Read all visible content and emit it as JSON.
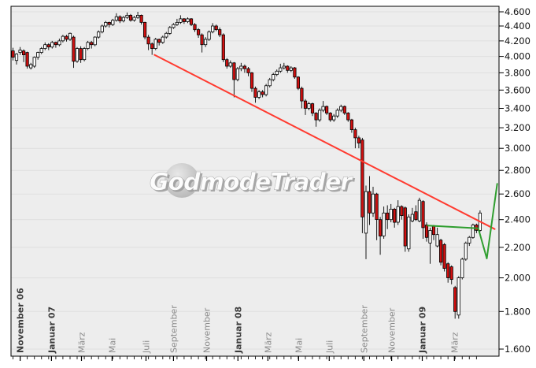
{
  "watermark": "GodmodeTrader",
  "chart_data": {
    "type": "candlestick",
    "timeframe": "weekly",
    "title": "",
    "legend": "none",
    "grid": "horizontal",
    "y_axis": {
      "side": "right",
      "scale": "log",
      "range": [
        1600,
        4600
      ],
      "ticks": [
        {
          "value": 4600,
          "label": "4.600"
        },
        {
          "value": 4400,
          "label": "4.400"
        },
        {
          "value": 4200,
          "label": "4.200"
        },
        {
          "value": 4000,
          "label": "4.000"
        },
        {
          "value": 3800,
          "label": "3.800"
        },
        {
          "value": 3600,
          "label": "3.600"
        },
        {
          "value": 3400,
          "label": "3.400"
        },
        {
          "value": 3200,
          "label": "3.200"
        },
        {
          "value": 3000,
          "label": "3.000"
        },
        {
          "value": 2800,
          "label": "2.800"
        },
        {
          "value": 2600,
          "label": "2.600"
        },
        {
          "value": 2400,
          "label": "2.400"
        },
        {
          "value": 2200,
          "label": "2.200"
        },
        {
          "value": 2000,
          "label": "2.000"
        },
        {
          "value": 1800,
          "label": "1.800"
        },
        {
          "value": 1600,
          "label": "1.600"
        }
      ]
    },
    "x_axis": {
      "labels": [
        {
          "label": "November 06",
          "week": 2.0,
          "bold": true
        },
        {
          "label": "Januar 07",
          "week": 10.8,
          "bold": true
        },
        {
          "label": "März",
          "week": 19.2,
          "bold": false
        },
        {
          "label": "Mai",
          "week": 27.8,
          "bold": false
        },
        {
          "label": "Juli",
          "week": 37.3,
          "bold": false
        },
        {
          "label": "September",
          "week": 45.0,
          "bold": false
        },
        {
          "label": "November",
          "week": 54.3,
          "bold": false
        },
        {
          "label": "Januar 08",
          "week": 63.1,
          "bold": true
        },
        {
          "label": "März",
          "week": 71.5,
          "bold": false
        },
        {
          "label": "Mai",
          "week": 80.1,
          "bold": false
        },
        {
          "label": "Juli",
          "week": 88.7,
          "bold": false
        },
        {
          "label": "September",
          "week": 98.4,
          "bold": false
        },
        {
          "label": "November",
          "week": 106.2,
          "bold": false
        },
        {
          "label": "Januar 09",
          "week": 114.8,
          "bold": true
        },
        {
          "label": "März",
          "week": 123.8,
          "bold": false
        }
      ]
    },
    "colors": {
      "up": "#ffffff",
      "down": "#d01010",
      "wick": "#1a1a1a",
      "trend_down": "#ff3b30",
      "trend_up": "#2f9e2f",
      "plot_bg": "#ededed",
      "gridline": "#dfdfdf"
    },
    "candles_ohlc": [
      [
        4070,
        4110,
        3950,
        3990
      ],
      [
        3950,
        4040,
        3900,
        4030
      ],
      [
        4050,
        4120,
        4020,
        4080
      ],
      [
        4070,
        4090,
        3930,
        4020
      ],
      [
        4050,
        4060,
        3850,
        3880
      ],
      [
        3860,
        3920,
        3840,
        3900
      ],
      [
        3880,
        4000,
        3860,
        3990
      ],
      [
        3990,
        4060,
        3960,
        4050
      ],
      [
        4050,
        4120,
        4030,
        4100
      ],
      [
        4100,
        4180,
        4080,
        4150
      ],
      [
        4150,
        4170,
        4080,
        4120
      ],
      [
        4120,
        4200,
        4100,
        4180
      ],
      [
        4180,
        4190,
        4110,
        4150
      ],
      [
        4150,
        4230,
        4130,
        4200
      ],
      [
        4200,
        4280,
        4180,
        4260
      ],
      [
        4260,
        4280,
        4190,
        4220
      ],
      [
        4220,
        4310,
        4200,
        4300
      ],
      [
        4250,
        4270,
        3860,
        3940
      ],
      [
        3940,
        4120,
        3920,
        4100
      ],
      [
        4100,
        4130,
        3920,
        3960
      ],
      [
        3960,
        4120,
        3940,
        4100
      ],
      [
        4100,
        4200,
        4080,
        4180
      ],
      [
        4180,
        4200,
        4100,
        4150
      ],
      [
        4150,
        4260,
        4130,
        4250
      ],
      [
        4250,
        4340,
        4230,
        4320
      ],
      [
        4320,
        4420,
        4300,
        4400
      ],
      [
        4400,
        4470,
        4380,
        4450
      ],
      [
        4450,
        4460,
        4380,
        4420
      ],
      [
        4420,
        4500,
        4400,
        4480
      ],
      [
        4480,
        4580,
        4460,
        4530
      ],
      [
        4530,
        4550,
        4440,
        4470
      ],
      [
        4470,
        4540,
        4450,
        4520
      ],
      [
        4520,
        4590,
        4500,
        4550
      ],
      [
        4550,
        4570,
        4460,
        4480
      ],
      [
        4480,
        4540,
        4460,
        4520
      ],
      [
        4520,
        4600,
        4500,
        4550
      ],
      [
        4550,
        4560,
        4420,
        4450
      ],
      [
        4450,
        4460,
        4220,
        4250
      ],
      [
        4250,
        4280,
        4080,
        4160
      ],
      [
        4160,
        4180,
        4020,
        4100
      ],
      [
        4100,
        4240,
        4080,
        4220
      ],
      [
        4220,
        4230,
        4140,
        4180
      ],
      [
        4180,
        4270,
        4160,
        4250
      ],
      [
        4250,
        4320,
        4230,
        4300
      ],
      [
        4300,
        4400,
        4280,
        4380
      ],
      [
        4380,
        4440,
        4360,
        4420
      ],
      [
        4420,
        4500,
        4400,
        4450
      ],
      [
        4450,
        4550,
        4430,
        4500
      ],
      [
        4500,
        4510,
        4430,
        4460
      ],
      [
        4460,
        4520,
        4440,
        4500
      ],
      [
        4500,
        4510,
        4400,
        4420
      ],
      [
        4420,
        4440,
        4320,
        4350
      ],
      [
        4350,
        4370,
        4240,
        4280
      ],
      [
        4280,
        4300,
        4050,
        4150
      ],
      [
        4150,
        4250,
        4120,
        4220
      ],
      [
        4220,
        4340,
        4200,
        4320
      ],
      [
        4320,
        4440,
        4300,
        4400
      ],
      [
        4400,
        4420,
        4330,
        4350
      ],
      [
        4350,
        4380,
        4250,
        4280
      ],
      [
        4280,
        4300,
        3930,
        3960
      ],
      [
        3960,
        3980,
        3850,
        3880
      ],
      [
        3880,
        3950,
        3860,
        3920
      ],
      [
        3920,
        3930,
        3520,
        3720
      ],
      [
        3720,
        3870,
        3700,
        3850
      ],
      [
        3850,
        3920,
        3820,
        3880
      ],
      [
        3880,
        3900,
        3800,
        3850
      ],
      [
        3850,
        3870,
        3760,
        3800
      ],
      [
        3800,
        3810,
        3580,
        3620
      ],
      [
        3620,
        3640,
        3460,
        3520
      ],
      [
        3520,
        3600,
        3500,
        3580
      ],
      [
        3580,
        3600,
        3520,
        3550
      ],
      [
        3550,
        3670,
        3530,
        3650
      ],
      [
        3650,
        3740,
        3630,
        3720
      ],
      [
        3720,
        3800,
        3700,
        3780
      ],
      [
        3780,
        3840,
        3760,
        3820
      ],
      [
        3820,
        3910,
        3800,
        3860
      ],
      [
        3860,
        3920,
        3840,
        3880
      ],
      [
        3880,
        3890,
        3800,
        3830
      ],
      [
        3830,
        3880,
        3810,
        3860
      ],
      [
        3860,
        3870,
        3730,
        3750
      ],
      [
        3750,
        3760,
        3600,
        3620
      ],
      [
        3620,
        3640,
        3400,
        3480
      ],
      [
        3480,
        3500,
        3330,
        3400
      ],
      [
        3400,
        3470,
        3380,
        3450
      ],
      [
        3450,
        3460,
        3320,
        3350
      ],
      [
        3350,
        3360,
        3210,
        3280
      ],
      [
        3280,
        3400,
        3260,
        3380
      ],
      [
        3380,
        3480,
        3360,
        3420
      ],
      [
        3420,
        3430,
        3330,
        3350
      ],
      [
        3350,
        3360,
        3260,
        3280
      ],
      [
        3280,
        3340,
        3260,
        3320
      ],
      [
        3320,
        3400,
        3300,
        3380
      ],
      [
        3380,
        3440,
        3360,
        3420
      ],
      [
        3420,
        3430,
        3330,
        3350
      ],
      [
        3350,
        3360,
        3260,
        3280
      ],
      [
        3280,
        3290,
        3150,
        3180
      ],
      [
        3180,
        3200,
        3000,
        3100
      ],
      [
        3100,
        3120,
        3000,
        3050
      ],
      [
        3080,
        3100,
        2300,
        2420
      ],
      [
        2300,
        2670,
        2120,
        2620
      ],
      [
        2620,
        2750,
        2360,
        2450
      ],
      [
        2450,
        2660,
        2420,
        2600
      ],
      [
        2600,
        2610,
        2250,
        2400
      ],
      [
        2400,
        2420,
        2150,
        2280
      ],
      [
        2280,
        2500,
        2260,
        2450
      ],
      [
        2450,
        2510,
        2330,
        2400
      ],
      [
        2400,
        2520,
        2380,
        2480
      ],
      [
        2480,
        2490,
        2340,
        2380
      ],
      [
        2380,
        2550,
        2360,
        2500
      ],
      [
        2500,
        2510,
        2400,
        2430
      ],
      [
        2490,
        2500,
        2170,
        2210
      ],
      [
        2190,
        2440,
        2170,
        2420
      ],
      [
        2390,
        2490,
        2380,
        2440
      ],
      [
        2460,
        2510,
        2390,
        2400
      ],
      [
        2390,
        2570,
        2380,
        2550
      ],
      [
        2540,
        2550,
        2260,
        2340
      ],
      [
        2360,
        2380,
        2240,
        2270
      ],
      [
        2230,
        2340,
        2090,
        2320
      ],
      [
        2350,
        2360,
        2250,
        2290
      ],
      [
        2210,
        2340,
        2200,
        2290
      ],
      [
        2250,
        2260,
        2080,
        2100
      ],
      [
        2220,
        2230,
        2040,
        2060
      ],
      [
        2090,
        2100,
        1970,
        2000
      ],
      [
        2070,
        2080,
        1960,
        1990
      ],
      [
        1940,
        1950,
        1760,
        1800
      ],
      [
        1780,
        2010,
        1760,
        2000
      ],
      [
        2000,
        2130,
        1990,
        2120
      ],
      [
        2120,
        2240,
        2110,
        2230
      ],
      [
        2230,
        2280,
        2210,
        2270
      ],
      [
        2270,
        2370,
        2260,
        2360
      ],
      [
        2360,
        2370,
        2300,
        2320
      ],
      [
        2320,
        2470,
        2310,
        2450
      ]
    ],
    "trendlines": [
      {
        "name": "downtrend-resistance",
        "color": "#ff3b30",
        "points": [
          {
            "week": 39.7,
            "value": 4020
          },
          {
            "week": 135.1,
            "value": 2330
          }
        ]
      },
      {
        "name": "breakout-projection",
        "color": "#2f9e2f",
        "points": [
          {
            "week": 116.3,
            "value": 2355
          },
          {
            "week": 130.5,
            "value": 2335
          },
          {
            "week": 132.9,
            "value": 2125
          },
          {
            "week": 135.8,
            "value": 2685
          }
        ]
      }
    ]
  }
}
